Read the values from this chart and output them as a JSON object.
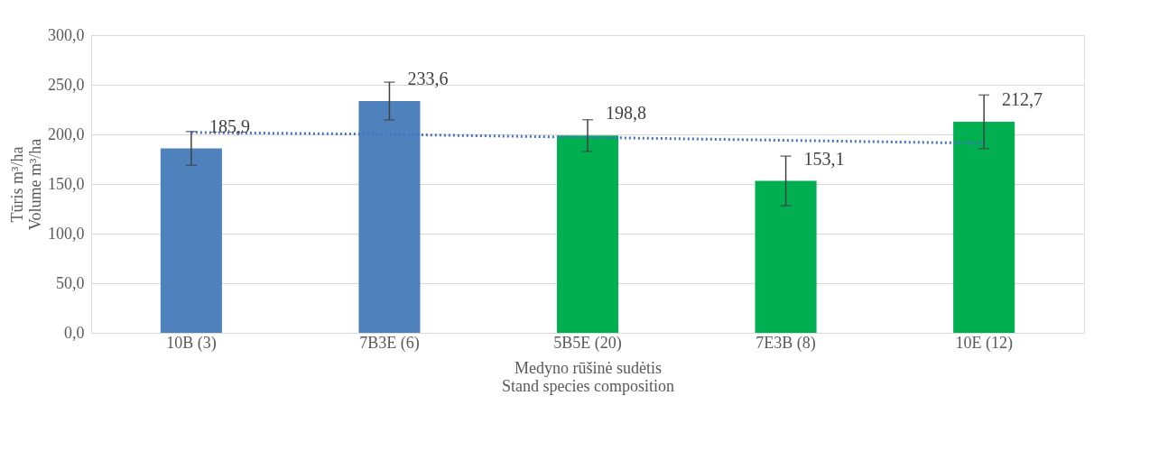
{
  "chart_data": {
    "type": "bar",
    "categories": [
      "10B (3)",
      "7B3E (6)",
      "5B5E (20)",
      "7E3B (8)",
      "10E (12)"
    ],
    "values": [
      185.9,
      233.6,
      198.8,
      153.1,
      212.7
    ],
    "colors": [
      "#4f81bd",
      "#4f81bd",
      "#00b050",
      "#00b050",
      "#00b050"
    ],
    "errors": [
      17,
      19,
      16,
      25,
      27
    ],
    "value_labels": [
      "185,9",
      "233,6",
      "198,8",
      "153,1",
      "212,7"
    ],
    "series": [
      {
        "type": "line",
        "color": "#4472c4",
        "line_style": "dotted",
        "values": [
          202,
          200,
          197,
          194,
          191
        ]
      }
    ],
    "xlabel": "Medyno rūšinė sudėtis\nStand species composition",
    "ylabel": "Tūris m³/ha\nVolume m³/ha",
    "ylim": [
      0,
      300
    ],
    "yticks": [
      {
        "value": 0,
        "label": "0,0"
      },
      {
        "value": 50,
        "label": "50,0"
      },
      {
        "value": 100,
        "label": "100,0"
      },
      {
        "value": 150,
        "label": "150,0"
      },
      {
        "value": 200,
        "label": "200,0"
      },
      {
        "value": 250,
        "label": "250,0"
      },
      {
        "value": 300,
        "label": "300,0"
      }
    ],
    "grid": "y"
  }
}
